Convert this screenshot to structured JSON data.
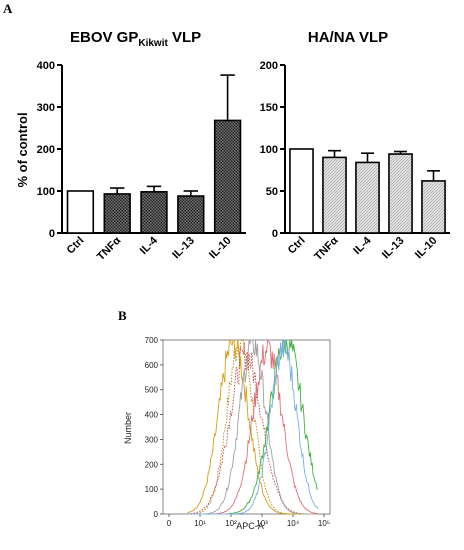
{
  "panel_a_label": "A",
  "panel_b_label": "B",
  "chart_data": [
    {
      "type": "bar",
      "title_main": "EBOV GP",
      "title_sub": "Kikwit",
      "title_tail": " VLP",
      "ylabel": "% of control",
      "categories": [
        "Ctrl",
        "TNFα",
        "IL-4",
        "IL-13",
        "IL-10"
      ],
      "values": [
        100,
        93,
        98,
        88,
        268
      ],
      "errors": [
        0,
        14,
        13,
        12,
        108
      ],
      "ylim": [
        0,
        400
      ],
      "yticks": [
        "0",
        "100",
        "200",
        "300",
        "400"
      ],
      "bar_fill": [
        "white",
        "dark-hatch",
        "dark-hatch",
        "dark-hatch",
        "dark-hatch"
      ]
    },
    {
      "type": "bar",
      "title": "HA/NA VLP",
      "ylabel": "",
      "categories": [
        "Ctrl",
        "TNFα",
        "IL-4",
        "IL-13",
        "IL-10"
      ],
      "values": [
        100,
        90,
        84,
        94,
        62
      ],
      "errors": [
        0,
        8,
        11,
        3,
        12
      ],
      "ylim": [
        0,
        200
      ],
      "yticks": [
        "0",
        "50",
        "100",
        "150",
        "200"
      ],
      "bar_fill": [
        "white",
        "light-hatch",
        "light-hatch",
        "light-hatch",
        "light-hatch"
      ]
    },
    {
      "type": "line",
      "title": "",
      "xlabel": "APC-A",
      "ylabel": "Number",
      "x_scale": "log",
      "xlim": [
        0,
        100000
      ],
      "ylim": [
        0,
        700
      ],
      "yticks": [
        "0",
        "100",
        "200",
        "300",
        "400",
        "500",
        "600",
        "700"
      ],
      "xticks": [
        "0",
        "10¹",
        "10²",
        "10³",
        "10⁴",
        "10⁵"
      ],
      "series": [
        {
          "color": "#b8860b",
          "style": "dotted",
          "peak_x": 200,
          "peak_y": 700
        },
        {
          "color": "#d4a017",
          "style": "solid",
          "peak_x": 120,
          "peak_y": 690
        },
        {
          "color": "#c04040",
          "style": "dotted",
          "peak_x": 300,
          "peak_y": 640
        },
        {
          "color": "#a0a0a0",
          "style": "solid",
          "peak_x": 500,
          "peak_y": 690
        },
        {
          "color": "#e0707a",
          "style": "solid",
          "peak_x": 1500,
          "peak_y": 660
        },
        {
          "color": "#40b040",
          "style": "solid",
          "peak_x": 6000,
          "peak_y": 700
        },
        {
          "color": "#7ab0e0",
          "style": "solid",
          "peak_x": 5000,
          "peak_y": 670
        }
      ]
    }
  ]
}
